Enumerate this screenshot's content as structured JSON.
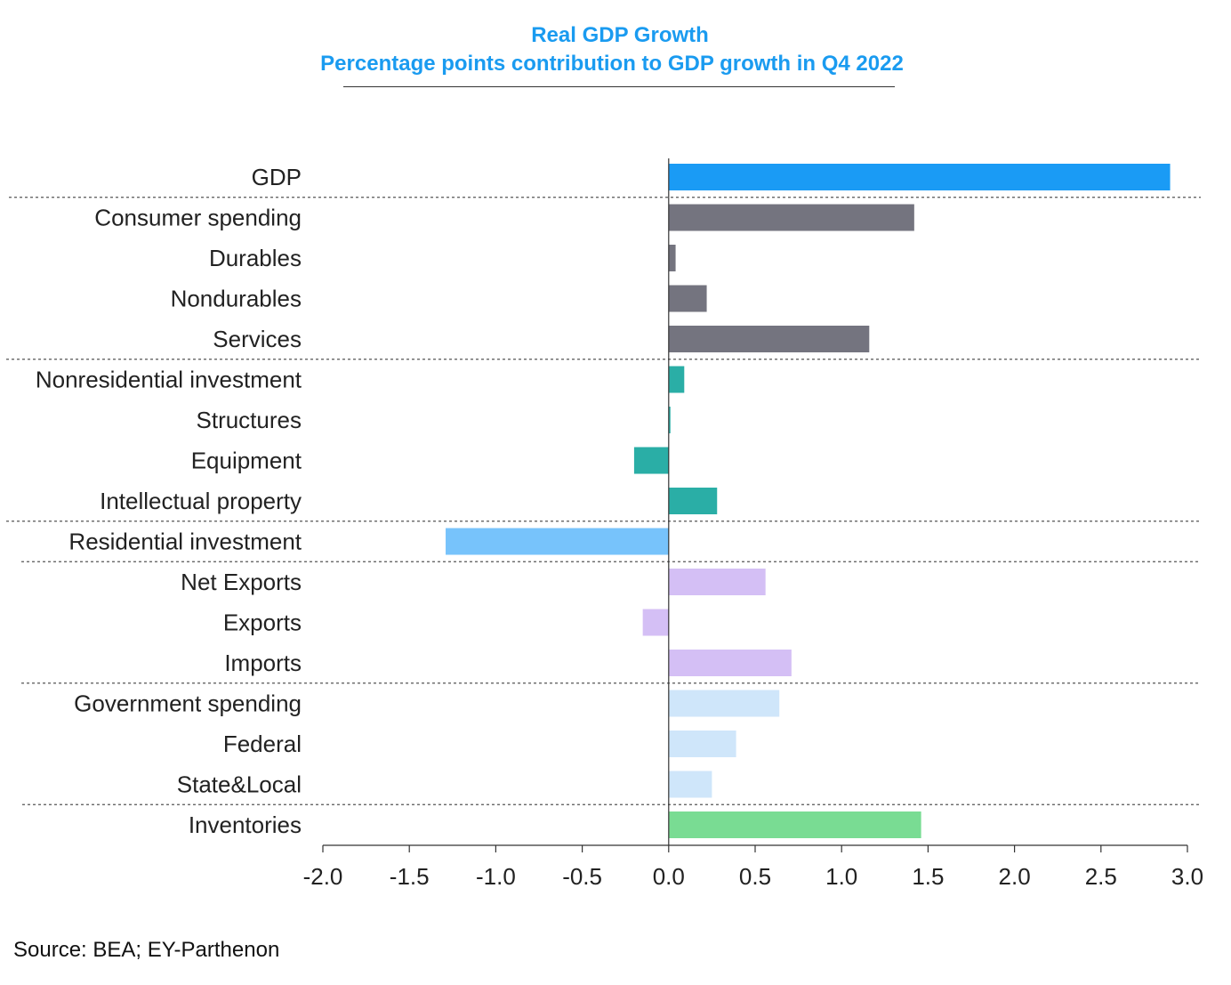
{
  "chart_data": {
    "type": "bar",
    "orientation": "horizontal",
    "title": "Real GDP Growth",
    "subtitle": "Percentage points contribution to GDP growth in Q4 2022",
    "categories": [
      "GDP",
      "Consumer spending",
      "Durables",
      "Nondurables",
      "Services",
      "Nonresidential investment",
      "Structures",
      "Equipment",
      "Intellectual property",
      "Residential investment",
      "Net Exports",
      "Exports",
      "Imports",
      "Government spending",
      "Federal",
      "State&Local",
      "Inventories"
    ],
    "values": [
      2.9,
      1.42,
      0.04,
      0.22,
      1.16,
      0.09,
      0.01,
      -0.2,
      0.28,
      -1.29,
      0.56,
      -0.15,
      0.71,
      0.64,
      0.39,
      0.25,
      1.46
    ],
    "groups": [
      {
        "name": "gdp",
        "color": "#1a9bf5",
        "members": [
          0
        ]
      },
      {
        "name": "consumer",
        "color": "#74747f",
        "members": [
          1,
          2,
          3,
          4
        ]
      },
      {
        "name": "nonresidential",
        "color": "#2aaea6",
        "members": [
          5,
          6,
          7,
          8
        ]
      },
      {
        "name": "residential",
        "color": "#77c3fb",
        "members": [
          9
        ]
      },
      {
        "name": "net-exports",
        "color": "#d4bff5",
        "members": [
          10,
          11,
          12
        ]
      },
      {
        "name": "government",
        "color": "#cfe6fa",
        "members": [
          13,
          14,
          15
        ]
      },
      {
        "name": "inventories",
        "color": "#79dc93",
        "members": [
          16
        ]
      }
    ],
    "xlim": [
      -2.0,
      3.0
    ],
    "xticks": [
      "-2.0",
      "-1.5",
      "-1.0",
      "-0.5",
      "0.0",
      "0.5",
      "1.0",
      "1.5",
      "2.0",
      "2.5",
      "3.0"
    ],
    "xtick_values": [
      -2.0,
      -1.5,
      -1.0,
      -0.5,
      0.0,
      0.5,
      1.0,
      1.5,
      2.0,
      2.5,
      3.0
    ],
    "separators_after": [
      0,
      4,
      8,
      9,
      12,
      15
    ],
    "grid": false,
    "legend": "none"
  },
  "source": "Source: BEA; EY-Parthenon"
}
